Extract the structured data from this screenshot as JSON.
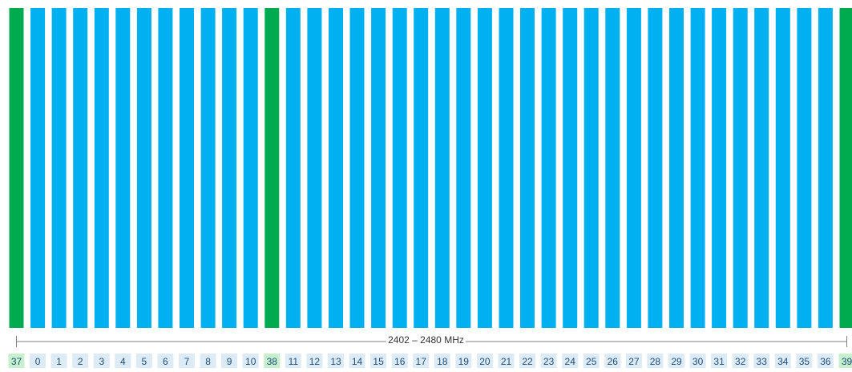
{
  "band_label": "2402 – 2480 MHz",
  "colors": {
    "advertising": "#00aa4f",
    "data": "#00b0f0",
    "advertising_label_bg": "#c6efce",
    "data_label_bg": "#ddebf7",
    "label_text": "#1f4e79",
    "axis": "#808080"
  },
  "chart_data": {
    "type": "bar",
    "categories": [
      "37",
      "0",
      "1",
      "2",
      "3",
      "4",
      "5",
      "6",
      "7",
      "8",
      "9",
      "10",
      "38",
      "11",
      "12",
      "13",
      "14",
      "15",
      "16",
      "17",
      "18",
      "19",
      "20",
      "21",
      "22",
      "23",
      "24",
      "25",
      "26",
      "27",
      "28",
      "29",
      "30",
      "31",
      "32",
      "33",
      "34",
      "35",
      "36",
      "39"
    ],
    "channel_kind": [
      "advertising",
      "data",
      "data",
      "data",
      "data",
      "data",
      "data",
      "data",
      "data",
      "data",
      "data",
      "data",
      "advertising",
      "data",
      "data",
      "data",
      "data",
      "data",
      "data",
      "data",
      "data",
      "data",
      "data",
      "data",
      "data",
      "data",
      "data",
      "data",
      "data",
      "data",
      "data",
      "data",
      "data",
      "data",
      "data",
      "data",
      "data",
      "data",
      "data",
      "advertising"
    ],
    "xlabel": "2402 – 2480 MHz"
  }
}
